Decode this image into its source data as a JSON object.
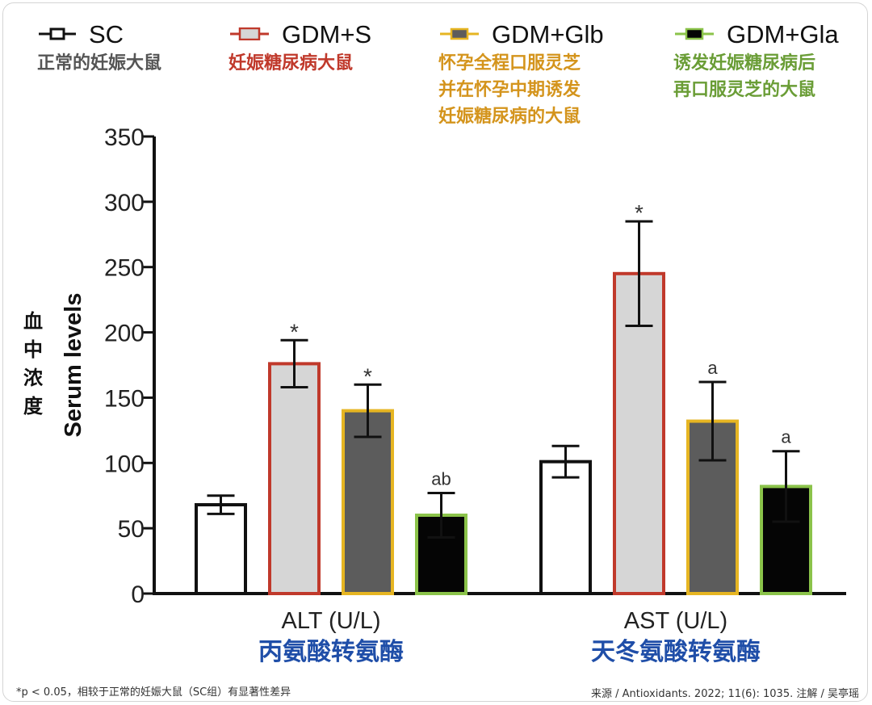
{
  "chart_data": {
    "type": "bar",
    "categories": [
      "ALT (U/L)",
      "AST (U/L)"
    ],
    "category_labels_cn": [
      "丙氨酸转氨酶",
      "天冬氨酸转氨酶"
    ],
    "ylabel": "Serum levels",
    "ylabel_cn": "血中浓度",
    "ylim": [
      0,
      350
    ],
    "yticks": [
      0,
      50,
      100,
      150,
      200,
      250,
      300,
      350
    ],
    "series": [
      {
        "name": "SC",
        "description": "正常的妊娠大鼠",
        "fill": "#ffffff",
        "edge": "#111111",
        "desc_color": "#555555",
        "values": [
          68,
          101
        ],
        "errors": [
          7,
          12
        ],
        "annotations": [
          "",
          ""
        ]
      },
      {
        "name": "GDM+S",
        "description": "妊娠糖尿病大鼠",
        "fill": "#d6d6d6",
        "edge": "#c0392b",
        "desc_color": "#c0392b",
        "values": [
          176,
          245
        ],
        "errors": [
          18,
          40
        ],
        "annotations": [
          "*",
          "*"
        ]
      },
      {
        "name": "GDM+Glb",
        "description": "怀孕全程口服灵芝\n并在怀孕中期诱发\n妊娠糖尿病的大鼠",
        "fill": "#5c5c5c",
        "edge": "#e6b522",
        "desc_color": "#d4941c",
        "values": [
          140,
          132
        ],
        "errors": [
          20,
          30
        ],
        "annotations": [
          "*",
          "a"
        ]
      },
      {
        "name": "GDM+Gla",
        "description": "诱发妊娠糖尿病后\n再口服灵芝的大鼠",
        "fill": "#050505",
        "edge": "#8bc34a",
        "desc_color": "#6a9d36",
        "values": [
          60,
          82
        ],
        "errors": [
          17,
          27
        ],
        "annotations": [
          "ab",
          "a"
        ]
      }
    ],
    "grid": false,
    "legend_position": "top"
  },
  "colors": {
    "axis": "#111111",
    "category_cn": "#1f4ea8"
  },
  "footnote": "*p < 0.05，相较于正常的妊娠大鼠（SC组）有显著性差异",
  "source": "来源 / Antioxidants. 2022; 11(6): 1035.   注解 / 吴亭瑶"
}
